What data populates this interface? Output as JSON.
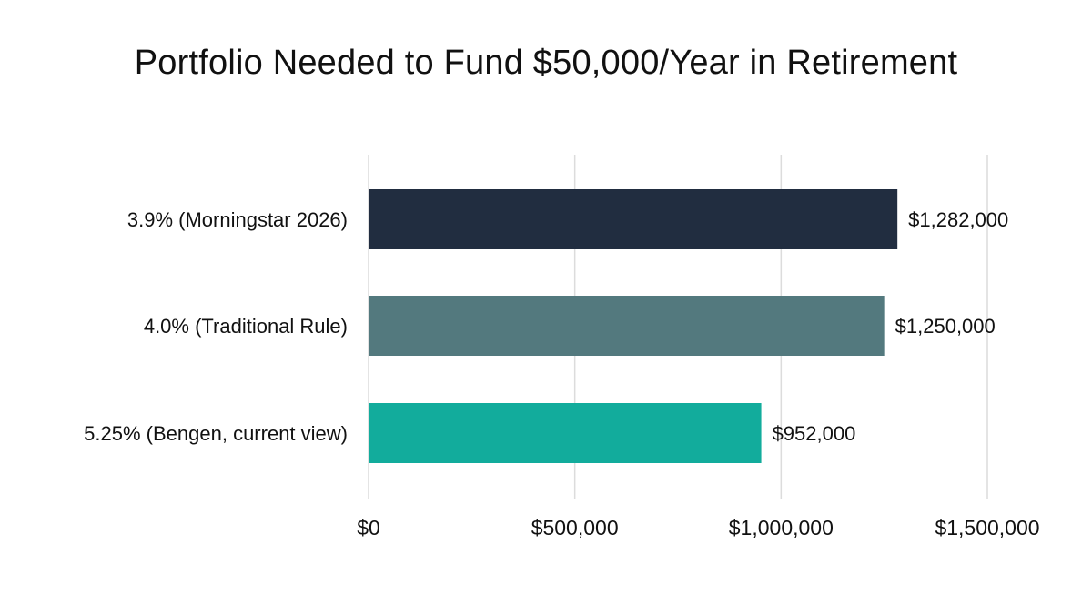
{
  "chart_data": {
    "type": "bar",
    "orientation": "horizontal",
    "title": "Portfolio Needed to Fund $50,000/Year in Retirement",
    "xlabel": "",
    "ylabel": "",
    "categories": [
      "3.9% (Morningstar 2026)",
      "4.0% (Traditional Rule)",
      "5.25% (Bengen, current view)"
    ],
    "values": [
      1282000,
      1250000,
      952000
    ],
    "data_labels": [
      "$1,282,000",
      "$1,250,000",
      "$952,000"
    ],
    "bar_colors": [
      "#212d40",
      "#53797e",
      "#12ac9c"
    ],
    "xlim": [
      0,
      1500000
    ],
    "x_ticks": [
      0,
      500000,
      1000000,
      1500000
    ],
    "x_tick_labels": [
      "$0",
      "$500,000",
      "$1,000,000",
      "$1,500,000"
    ],
    "grid": true,
    "legend": "none"
  }
}
